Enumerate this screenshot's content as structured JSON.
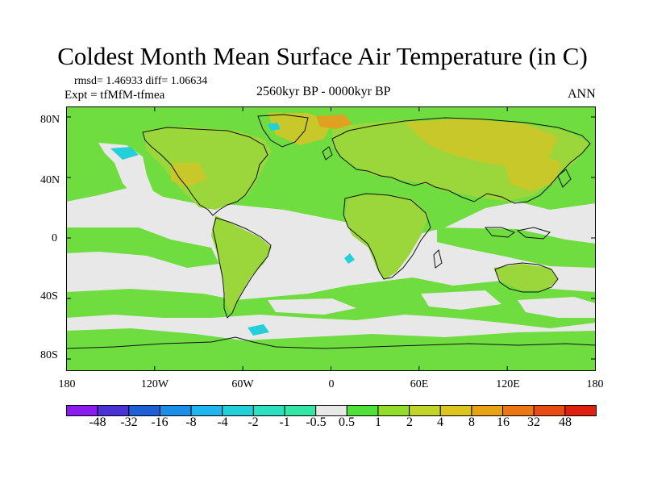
{
  "title": "Coldest Month Mean Surface Air Temperature (in C)",
  "stats": "rmsd= 1.46933  diff= 1.06634",
  "experiment": "Expt = tfMfM-tfmea",
  "period": "2560kyr BP - 0000kyr BP",
  "season": "ANN",
  "axes": {
    "y_ticks": [
      "80N",
      "40N",
      "0",
      "40S",
      "80S"
    ],
    "x_ticks": [
      "180",
      "120W",
      "60W",
      "0",
      "60E",
      "120E",
      "180"
    ]
  },
  "colorbar": {
    "labels": [
      "-48",
      "-32",
      "-16",
      "-8",
      "-4",
      "-2",
      "-1",
      "-0.5",
      "0.5",
      "1",
      "2",
      "4",
      "8",
      "16",
      "32",
      "48"
    ],
    "colors": [
      "#8a1cf0",
      "#4a32d6",
      "#1f5fd6",
      "#1b8ee8",
      "#1fb5ee",
      "#23cfd9",
      "#2ee0c0",
      "#34e6a6",
      "#e8e8e8",
      "#4fe03a",
      "#93dc2b",
      "#c0d42a",
      "#dcc520",
      "#e8a216",
      "#ea7614",
      "#e84c12",
      "#e0200e"
    ]
  },
  "regions": {
    "neutral_color": "#e8e8e8",
    "land_color": "#9bd63a",
    "warm_color": "#c8c82a",
    "hot_color": "#e0a020",
    "ocean_color": "#6fdc40",
    "cool_color": "#23cfd9",
    "coast_color": "#111111"
  }
}
